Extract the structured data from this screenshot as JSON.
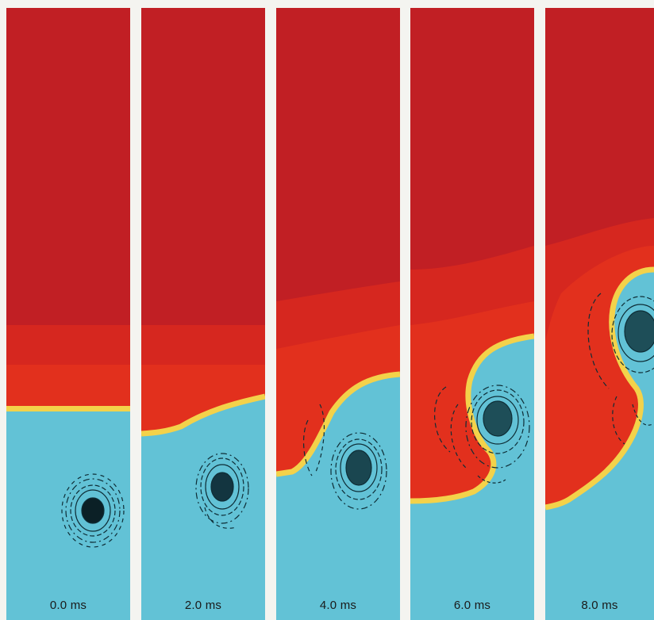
{
  "figure": {
    "colors": {
      "upper_fluid": "#c11f24",
      "upper_fluid_light": "#d6271f",
      "mixing_band": "#e2301d",
      "interface": "#f3d24a",
      "lower_fluid": "#62c2d6",
      "vortex_lines": "#0e2d36",
      "background": "#f4f4f0"
    },
    "panels": [
      {
        "label": "0.0 ms"
      },
      {
        "label": "2.0 ms"
      },
      {
        "label": "4.0 ms"
      },
      {
        "label": "6.0 ms"
      },
      {
        "label": "8.0 ms"
      }
    ]
  }
}
